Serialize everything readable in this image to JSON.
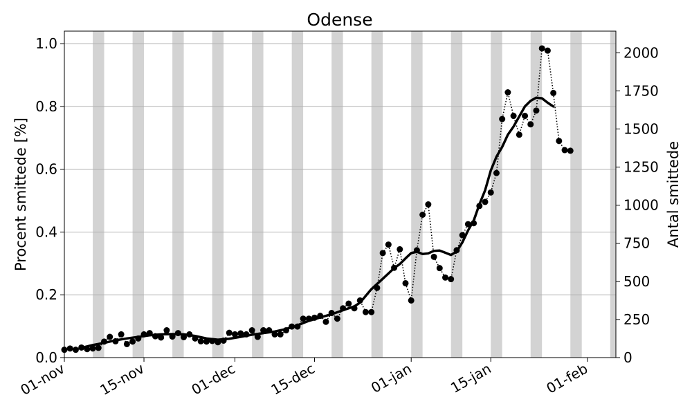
{
  "chart_data": {
    "type": "line",
    "title": "Odense",
    "ylabel_left": "Procent smittede [%]",
    "ylabel_right": "Antal smittede",
    "xlabel": "",
    "ylim_left": [
      0,
      1.04
    ],
    "ylim_right": [
      0,
      2142
    ],
    "xlim": [
      "2020-11-01",
      "2021-02-06"
    ],
    "yticks_left": [
      "0.0",
      "0.2",
      "0.4",
      "0.6",
      "0.8",
      "1.0"
    ],
    "yticks_right": [
      "0",
      "250",
      "500",
      "750",
      "1000",
      "1250",
      "1500",
      "1750",
      "2000"
    ],
    "xticks": [
      {
        "date": "2020-11-01",
        "label": "01-nov"
      },
      {
        "date": "2020-11-15",
        "label": "15-nov"
      },
      {
        "date": "2020-12-01",
        "label": "01-dec"
      },
      {
        "date": "2020-12-15",
        "label": "15-dec"
      },
      {
        "date": "2021-01-01",
        "label": "01-jan"
      },
      {
        "date": "2021-01-15",
        "label": "15-jan"
      },
      {
        "date": "2021-02-01",
        "label": "01-feb"
      }
    ],
    "grid": "horizontal",
    "weekend_shading": [
      [
        "2020-11-06",
        "2020-11-08"
      ],
      [
        "2020-11-13",
        "2020-11-15"
      ],
      [
        "2020-11-20",
        "2020-11-22"
      ],
      [
        "2020-11-27",
        "2020-11-29"
      ],
      [
        "2020-12-04",
        "2020-12-06"
      ],
      [
        "2020-12-11",
        "2020-12-13"
      ],
      [
        "2020-12-18",
        "2020-12-20"
      ],
      [
        "2020-12-25",
        "2020-12-27"
      ],
      [
        "2021-01-01",
        "2021-01-03"
      ],
      [
        "2021-01-08",
        "2021-01-10"
      ],
      [
        "2021-01-15",
        "2021-01-17"
      ],
      [
        "2021-01-22",
        "2021-01-24"
      ],
      [
        "2021-01-29",
        "2021-01-31"
      ],
      [
        "2021-02-05",
        "2021-02-06"
      ]
    ],
    "series": [
      {
        "style": "dotted-with-markers",
        "color": "#000000",
        "points": [
          [
            "2020-11-01",
            0.025
          ],
          [
            "2020-11-02",
            0.029
          ],
          [
            "2020-11-03",
            0.025
          ],
          [
            "2020-11-04",
            0.032
          ],
          [
            "2020-11-05",
            0.027
          ],
          [
            "2020-11-06",
            0.029
          ],
          [
            "2020-11-07",
            0.031
          ],
          [
            "2020-11-08",
            0.051
          ],
          [
            "2020-11-09",
            0.066
          ],
          [
            "2020-11-10",
            0.052
          ],
          [
            "2020-11-11",
            0.074
          ],
          [
            "2020-11-12",
            0.043
          ],
          [
            "2020-11-13",
            0.051
          ],
          [
            "2020-11-14",
            0.061
          ],
          [
            "2020-11-15",
            0.074
          ],
          [
            "2020-11-16",
            0.078
          ],
          [
            "2020-11-17",
            0.068
          ],
          [
            "2020-11-18",
            0.064
          ],
          [
            "2020-11-19",
            0.087
          ],
          [
            "2020-11-20",
            0.067
          ],
          [
            "2020-11-21",
            0.078
          ],
          [
            "2020-11-22",
            0.065
          ],
          [
            "2020-11-23",
            0.074
          ],
          [
            "2020-11-24",
            0.061
          ],
          [
            "2020-11-25",
            0.052
          ],
          [
            "2020-11-26",
            0.051
          ],
          [
            "2020-11-27",
            0.053
          ],
          [
            "2020-11-28",
            0.049
          ],
          [
            "2020-11-29",
            0.054
          ],
          [
            "2020-11-30",
            0.079
          ],
          [
            "2020-12-01",
            0.074
          ],
          [
            "2020-12-02",
            0.077
          ],
          [
            "2020-12-03",
            0.074
          ],
          [
            "2020-12-04",
            0.087
          ],
          [
            "2020-12-05",
            0.066
          ],
          [
            "2020-12-06",
            0.087
          ],
          [
            "2020-12-07",
            0.087
          ],
          [
            "2020-12-08",
            0.074
          ],
          [
            "2020-12-09",
            0.074
          ],
          [
            "2020-12-10",
            0.087
          ],
          [
            "2020-12-11",
            0.099
          ],
          [
            "2020-12-12",
            0.099
          ],
          [
            "2020-12-13",
            0.124
          ],
          [
            "2020-12-14",
            0.124
          ],
          [
            "2020-12-15",
            0.127
          ],
          [
            "2020-12-16",
            0.133
          ],
          [
            "2020-12-17",
            0.114
          ],
          [
            "2020-12-18",
            0.142
          ],
          [
            "2020-12-19",
            0.124
          ],
          [
            "2020-12-20",
            0.157
          ],
          [
            "2020-12-21",
            0.172
          ],
          [
            "2020-12-22",
            0.157
          ],
          [
            "2020-12-23",
            0.182
          ],
          [
            "2020-12-24",
            0.145
          ],
          [
            "2020-12-25",
            0.145
          ],
          [
            "2020-12-26",
            0.222
          ],
          [
            "2020-12-27",
            0.333
          ],
          [
            "2020-12-28",
            0.36
          ],
          [
            "2020-12-29",
            0.286
          ],
          [
            "2020-12-30",
            0.345
          ],
          [
            "2020-12-31",
            0.237
          ],
          [
            "2021-01-01",
            0.182
          ],
          [
            "2021-01-02",
            0.342
          ],
          [
            "2021-01-03",
            0.455
          ],
          [
            "2021-01-04",
            0.488
          ],
          [
            "2021-01-05",
            0.321
          ],
          [
            "2021-01-06",
            0.285
          ],
          [
            "2021-01-07",
            0.255
          ],
          [
            "2021-01-08",
            0.25
          ],
          [
            "2021-01-09",
            0.342
          ],
          [
            "2021-01-10",
            0.39
          ],
          [
            "2021-01-11",
            0.425
          ],
          [
            "2021-01-12",
            0.428
          ],
          [
            "2021-01-13",
            0.483
          ],
          [
            "2021-01-14",
            0.496
          ],
          [
            "2021-01-15",
            0.526
          ],
          [
            "2021-01-16",
            0.588
          ],
          [
            "2021-01-17",
            0.76
          ],
          [
            "2021-01-18",
            0.845
          ],
          [
            "2021-01-19",
            0.77
          ],
          [
            "2021-01-20",
            0.71
          ],
          [
            "2021-01-21",
            0.77
          ],
          [
            "2021-01-22",
            0.743
          ],
          [
            "2021-01-23",
            0.787
          ],
          [
            "2021-01-24",
            0.985
          ],
          [
            "2021-01-25",
            0.978
          ],
          [
            "2021-01-26",
            0.843
          ],
          [
            "2021-01-27",
            0.69
          ],
          [
            "2021-01-28",
            0.661
          ],
          [
            "2021-01-29",
            0.659
          ]
        ]
      },
      {
        "style": "solid-thick",
        "color": "#000000",
        "points": [
          [
            "2020-11-04",
            0.031
          ],
          [
            "2020-11-06",
            0.04
          ],
          [
            "2020-11-08",
            0.047
          ],
          [
            "2020-11-10",
            0.055
          ],
          [
            "2020-11-12",
            0.061
          ],
          [
            "2020-11-14",
            0.066
          ],
          [
            "2020-11-16",
            0.071
          ],
          [
            "2020-11-18",
            0.074
          ],
          [
            "2020-11-20",
            0.075
          ],
          [
            "2020-11-22",
            0.074
          ],
          [
            "2020-11-24",
            0.069
          ],
          [
            "2020-11-26",
            0.061
          ],
          [
            "2020-11-28",
            0.057
          ],
          [
            "2020-11-30",
            0.06
          ],
          [
            "2020-12-02",
            0.066
          ],
          [
            "2020-12-04",
            0.073
          ],
          [
            "2020-12-06",
            0.078
          ],
          [
            "2020-12-08",
            0.083
          ],
          [
            "2020-12-10",
            0.091
          ],
          [
            "2020-12-12",
            0.103
          ],
          [
            "2020-12-14",
            0.117
          ],
          [
            "2020-12-16",
            0.128
          ],
          [
            "2020-12-18",
            0.138
          ],
          [
            "2020-12-20",
            0.151
          ],
          [
            "2020-12-22",
            0.163
          ],
          [
            "2020-12-23",
            0.175
          ],
          [
            "2020-12-25",
            0.218
          ],
          [
            "2020-12-27",
            0.251
          ],
          [
            "2020-12-28",
            0.268
          ],
          [
            "2020-12-29",
            0.285
          ],
          [
            "2020-12-30",
            0.298
          ],
          [
            "2020-12-31",
            0.316
          ],
          [
            "2021-01-01",
            0.333
          ],
          [
            "2021-01-02",
            0.337
          ],
          [
            "2021-01-03",
            0.33
          ],
          [
            "2021-01-04",
            0.332
          ],
          [
            "2021-01-05",
            0.34
          ],
          [
            "2021-01-06",
            0.341
          ],
          [
            "2021-01-07",
            0.334
          ],
          [
            "2021-01-08",
            0.327
          ],
          [
            "2021-01-09",
            0.338
          ],
          [
            "2021-01-10",
            0.367
          ],
          [
            "2021-01-11",
            0.405
          ],
          [
            "2021-01-12",
            0.437
          ],
          [
            "2021-01-13",
            0.488
          ],
          [
            "2021-01-14",
            0.533
          ],
          [
            "2021-01-15",
            0.596
          ],
          [
            "2021-01-16",
            0.64
          ],
          [
            "2021-01-17",
            0.671
          ],
          [
            "2021-01-18",
            0.71
          ],
          [
            "2021-01-19",
            0.736
          ],
          [
            "2021-01-20",
            0.768
          ],
          [
            "2021-01-21",
            0.8
          ],
          [
            "2021-01-22",
            0.818
          ],
          [
            "2021-01-23",
            0.828
          ],
          [
            "2021-01-24",
            0.826
          ],
          [
            "2021-01-25",
            0.812
          ],
          [
            "2021-01-26",
            0.8
          ]
        ]
      }
    ]
  }
}
